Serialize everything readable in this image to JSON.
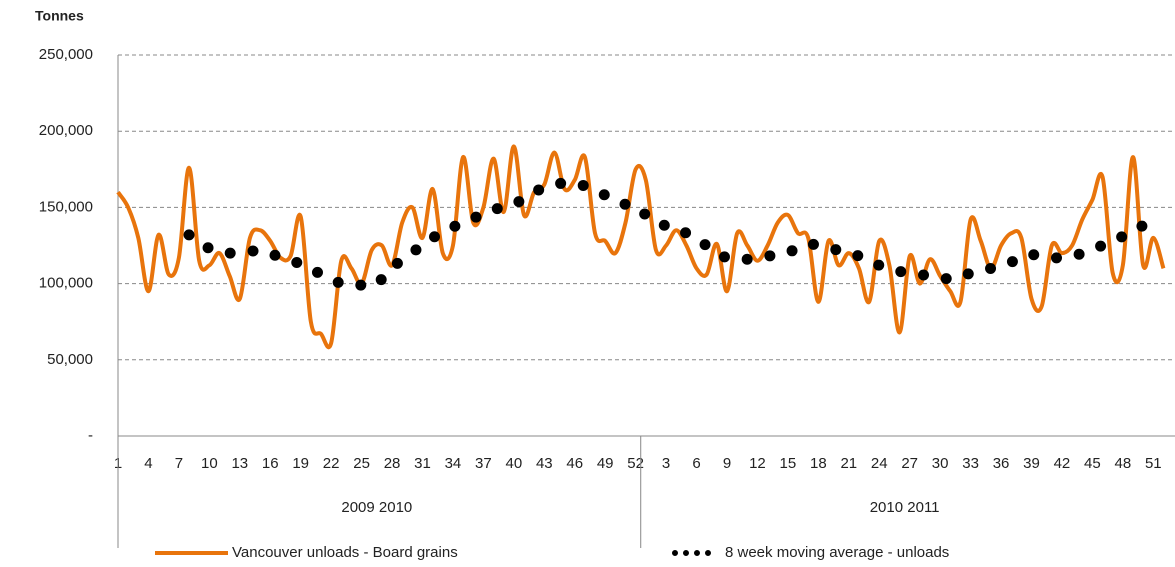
{
  "chart_data": {
    "type": "line",
    "y_label": "Tonnes",
    "categories": [
      1,
      null,
      null,
      4,
      null,
      null,
      7,
      null,
      null,
      10,
      null,
      null,
      13,
      null,
      null,
      16,
      null,
      null,
      19,
      null,
      null,
      22,
      null,
      null,
      25,
      null,
      null,
      28,
      null,
      null,
      31,
      null,
      null,
      34,
      null,
      null,
      37,
      null,
      null,
      40,
      null,
      null,
      43,
      null,
      null,
      46,
      null,
      null,
      49,
      null,
      null,
      52,
      null,
      null,
      3,
      null,
      null,
      6,
      null,
      null,
      9,
      null,
      null,
      12,
      null,
      null,
      15,
      null,
      null,
      18,
      null,
      null,
      21,
      null,
      null,
      24,
      null,
      null,
      27,
      null,
      null,
      30,
      null,
      null,
      33,
      null,
      null,
      36,
      null,
      null,
      39,
      null,
      null,
      42,
      null,
      null,
      45,
      null,
      null,
      48,
      null,
      null,
      51,
      null
    ],
    "groups": [
      "2009 2010",
      "2010 2011"
    ],
    "series": [
      {
        "name": "Vancouver unloads - Board grains",
        "color": "#e8740c",
        "style": "solid",
        "values": [
          160000,
          150000,
          130000,
          95000,
          132000,
          106000,
          117000,
          176000,
          115000,
          112000,
          120000,
          105000,
          90000,
          130000,
          135000,
          128000,
          117000,
          118000,
          144000,
          75000,
          67000,
          61000,
          115000,
          110000,
          100000,
          122000,
          125000,
          112000,
          140000,
          150000,
          130000,
          162000,
          120000,
          125000,
          183000,
          140000,
          150000,
          182000,
          147000,
          190000,
          145000,
          160000,
          165000,
          186000,
          162000,
          168000,
          183000,
          133000,
          128000,
          120000,
          140000,
          175000,
          168000,
          122000,
          125000,
          135000,
          125000,
          110000,
          106000,
          126000,
          95000,
          133000,
          125000,
          115000,
          125000,
          140000,
          145000,
          133000,
          130000,
          88000,
          128000,
          112000,
          120000,
          110000,
          88000,
          128000,
          112000,
          68000,
          118000,
          100000,
          116000,
          105000,
          95000,
          88000,
          142000,
          128000,
          110000,
          125000,
          133000,
          130000,
          90000,
          85000,
          125000,
          120000,
          125000,
          142000,
          155000,
          170000,
          107000,
          112000,
          183000,
          112000,
          130000,
          110000
        ]
      },
      {
        "name": "8 week moving average - unloads",
        "color": "#000000",
        "style": "dots",
        "values": [
          null,
          null,
          null,
          null,
          null,
          null,
          null,
          132000,
          128000,
          123000,
          121000,
          120000,
          120000,
          121000,
          122000,
          120000,
          117000,
          115000,
          113000,
          110000,
          106000,
          103000,
          100000,
          99000,
          99000,
          98000,
          103000,
          110000,
          116000,
          121000,
          124000,
          130000,
          133000,
          137000,
          140000,
          143000,
          145000,
          148000,
          151000,
          152000,
          156000,
          160000,
          163000,
          165000,
          166000,
          166000,
          164000,
          161000,
          158000,
          154000,
          152000,
          151000,
          145000,
          140000,
          138000,
          137000,
          133000,
          128000,
          125000,
          120000,
          117000,
          116000,
          116000,
          117000,
          118000,
          119000,
          120000,
          124000,
          126000,
          125000,
          123000,
          122000,
          121000,
          118000,
          115000,
          112000,
          110000,
          108000,
          107000,
          106000,
          105000,
          104000,
          103000,
          104000,
          107000,
          108000,
          110000,
          112000,
          114000,
          118000,
          119000,
          118000,
          117000,
          117000,
          118000,
          120000,
          123000,
          125000,
          128000,
          131000,
          134000,
          138000,
          137000,
          134000
        ]
      }
    ],
    "ylim": [
      0,
      250000
    ],
    "yticks": [
      {
        "value": 0,
        "label": "-"
      },
      {
        "value": 50000,
        "label": "50,000"
      },
      {
        "value": 100000,
        "label": "100,000"
      },
      {
        "value": 150000,
        "label": "150,000"
      },
      {
        "value": 200000,
        "label": "200,000"
      },
      {
        "value": 250000,
        "label": "250,000"
      }
    ],
    "grid": true
  }
}
